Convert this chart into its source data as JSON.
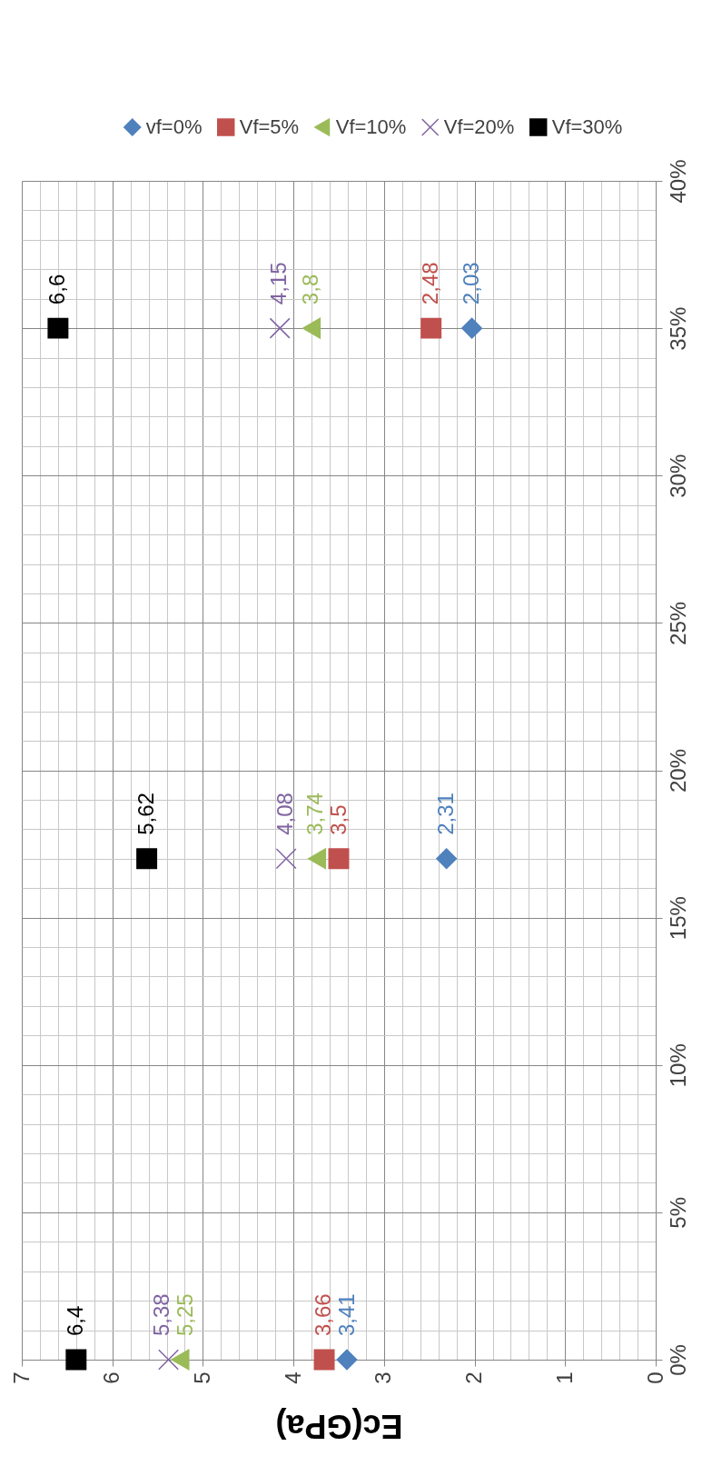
{
  "chart_data": {
    "type": "scatter",
    "orientation": "horizontal",
    "xlabel": "Ec(GPa)",
    "x": [
      0,
      17,
      35
    ],
    "xlim": [
      7,
      0
    ],
    "xticks": [
      7,
      {
        "value": 6.8,
        "label": null
      },
      {
        "value": 6.6,
        "label": null
      },
      {
        "value": 6.4,
        "label": null
      },
      {
        "value": 6.2,
        "label": null
      },
      6,
      {
        "value": 5.8,
        "label": null
      },
      {
        "value": 5.6,
        "label": null
      },
      {
        "value": 5.4,
        "label": null
      },
      {
        "value": 5.2,
        "label": null
      },
      5,
      {
        "value": 4.8,
        "label": null
      },
      {
        "value": 4.6,
        "label": null
      },
      {
        "value": 4.4,
        "label": null
      },
      {
        "value": 4.2,
        "label": null
      },
      4,
      {
        "value": 3.8,
        "label": null
      },
      {
        "value": 3.6,
        "label": null
      },
      {
        "value": 3.4,
        "label": null
      },
      {
        "value": 3.2,
        "label": null
      },
      3,
      {
        "value": 2.8,
        "label": null
      },
      {
        "value": 2.6,
        "label": null
      },
      {
        "value": 2.4,
        "label": null
      },
      {
        "value": 2.2,
        "label": null
      },
      2,
      {
        "value": 1.8,
        "label": null
      },
      {
        "value": 1.6,
        "label": null
      },
      {
        "value": 1.4,
        "label": null
      },
      {
        "value": 1.2,
        "label": null
      },
      1,
      {
        "value": 0.8,
        "label": null
      },
      {
        "value": 0.6,
        "label": null
      },
      {
        "value": 0.4,
        "label": null
      },
      {
        "value": 0.2,
        "label": null
      },
      0
    ],
    "ylim": [
      0,
      40
    ],
    "yticks": [
      {
        "value": 0,
        "label": "0%"
      },
      {
        "value": 1,
        "label": null
      },
      {
        "value": 2,
        "label": null
      },
      {
        "value": 3,
        "label": null
      },
      {
        "value": 4,
        "label": null
      },
      {
        "value": 5,
        "label": "5%"
      },
      {
        "value": 6,
        "label": null
      },
      {
        "value": 7,
        "label": null
      },
      {
        "value": 8,
        "label": null
      },
      {
        "value": 9,
        "label": null
      },
      {
        "value": 10,
        "label": "10%"
      },
      {
        "value": 11,
        "label": null
      },
      {
        "value": 12,
        "label": null
      },
      {
        "value": 13,
        "label": null
      },
      {
        "value": 14,
        "label": null
      },
      {
        "value": 15,
        "label": "15%"
      },
      {
        "value": 16,
        "label": null
      },
      {
        "value": 17,
        "label": null
      },
      {
        "value": 18,
        "label": null
      },
      {
        "value": 19,
        "label": null
      },
      {
        "value": 20,
        "label": "20%"
      },
      {
        "value": 21,
        "label": null
      },
      {
        "value": 22,
        "label": null
      },
      {
        "value": 23,
        "label": null
      },
      {
        "value": 24,
        "label": null
      },
      {
        "value": 25,
        "label": "25%"
      },
      {
        "value": 26,
        "label": null
      },
      {
        "value": 27,
        "label": null
      },
      {
        "value": 28,
        "label": null
      },
      {
        "value": 29,
        "label": null
      },
      {
        "value": 30,
        "label": "30%"
      },
      {
        "value": 31,
        "label": null
      },
      {
        "value": 32,
        "label": null
      },
      {
        "value": 33,
        "label": null
      },
      {
        "value": 34,
        "label": null
      },
      {
        "value": 35,
        "label": "35%"
      },
      {
        "value": 36,
        "label": null
      },
      {
        "value": 37,
        "label": null
      },
      {
        "value": 38,
        "label": null
      },
      {
        "value": 39,
        "label": null
      },
      {
        "value": 40,
        "label": "40%"
      }
    ],
    "grid": true,
    "legend": "top right",
    "series": [
      {
        "name": "vf=0%",
        "color": "#4f81bd",
        "marker": "diamond",
        "values": [
          3.41,
          2.31,
          2.03
        ],
        "value_labels": [
          "3,41",
          "2,31",
          "2,03"
        ]
      },
      {
        "name": "Vf=5%",
        "color": "#c0504d",
        "marker": "square",
        "values": [
          3.66,
          3.5,
          2.48
        ],
        "value_labels": [
          "3,66",
          "3,5",
          "2,48"
        ]
      },
      {
        "name": "Vf=10%",
        "color": "#9bbb59",
        "marker": "triangle",
        "values": [
          5.25,
          3.74,
          3.8
        ],
        "value_labels": [
          "5,25",
          "3,74",
          "3,8"
        ]
      },
      {
        "name": "Vf=20%",
        "color": "#8064a2",
        "marker": "cross",
        "values": [
          5.38,
          4.08,
          4.15
        ],
        "value_labels": [
          "5,38",
          "4,08",
          "4,15"
        ]
      },
      {
        "name": "Vf=30%",
        "color": "#000000",
        "marker": "square",
        "values": [
          6.4,
          5.62,
          6.6
        ],
        "value_labels": [
          "6,4",
          "5,62",
          "6,6"
        ]
      }
    ]
  }
}
